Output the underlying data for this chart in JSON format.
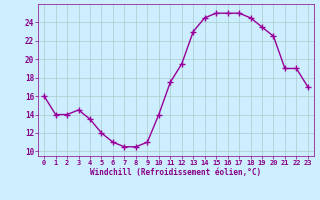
{
  "x": [
    0,
    1,
    2,
    3,
    4,
    5,
    6,
    7,
    8,
    9,
    10,
    11,
    12,
    13,
    14,
    15,
    16,
    17,
    18,
    19,
    20,
    21,
    22,
    23
  ],
  "y": [
    16,
    14,
    14,
    14.5,
    13.5,
    12,
    11,
    10.5,
    10.5,
    11,
    14,
    17.5,
    19.5,
    23,
    24.5,
    25,
    25,
    25,
    24.5,
    23.5,
    22.5,
    19,
    19,
    17
  ],
  "line_color": "#990099",
  "marker": "+",
  "marker_size": 4,
  "background_color": "#cceeff",
  "grid_color": "#aacccc",
  "xlabel": "Windchill (Refroidissement éolien,°C)",
  "xlabel_color": "#880088",
  "tick_color": "#880088",
  "ylim": [
    9.5,
    26
  ],
  "xlim": [
    -0.5,
    23.5
  ],
  "yticks": [
    10,
    12,
    14,
    16,
    18,
    20,
    22,
    24
  ],
  "xticks": [
    0,
    1,
    2,
    3,
    4,
    5,
    6,
    7,
    8,
    9,
    10,
    11,
    12,
    13,
    14,
    15,
    16,
    17,
    18,
    19,
    20,
    21,
    22,
    23
  ],
  "line_width": 1.0,
  "marker_color": "#990099"
}
